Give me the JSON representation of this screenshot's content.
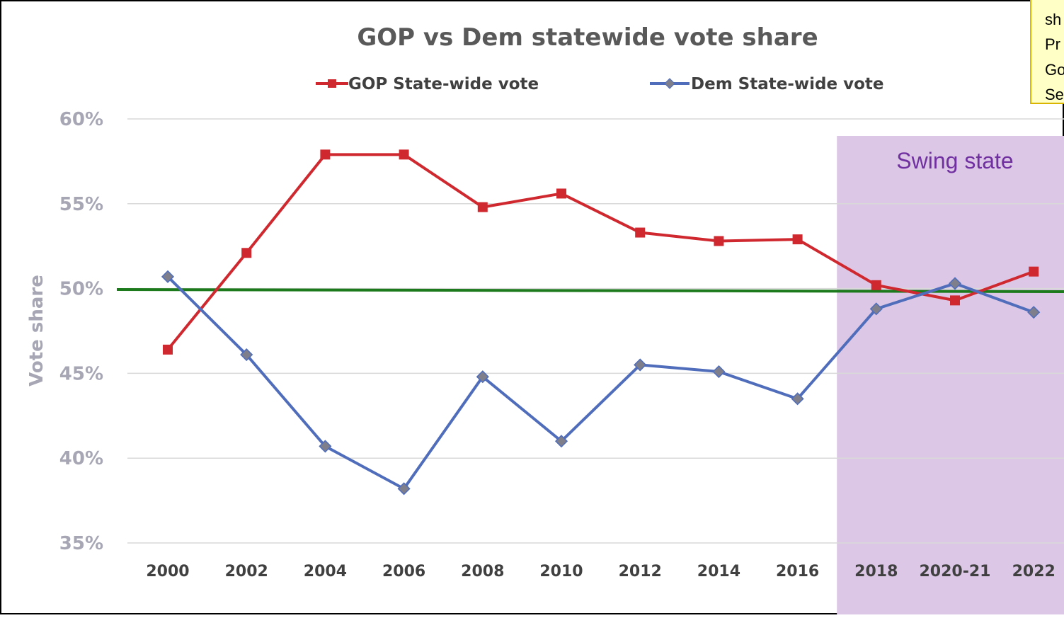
{
  "chart_data": {
    "type": "line",
    "title": "GOP vs Dem statewide vote share",
    "xlabel": "",
    "ylabel": "Vote share",
    "categories": [
      "2000",
      "2002",
      "2004",
      "2006",
      "2008",
      "2010",
      "2012",
      "2014",
      "2016",
      "2018",
      "2020-21",
      "2022"
    ],
    "y_ticks": [
      "35%",
      "40%",
      "45%",
      "50%",
      "55%",
      "60%"
    ],
    "ylim": [
      35,
      60
    ],
    "grid": true,
    "legend_position": "top",
    "series": [
      {
        "name": "GOP State-wide vote",
        "color": "#d0282f",
        "marker": "square",
        "values": [
          46.4,
          52.1,
          57.9,
          57.9,
          54.8,
          55.6,
          53.3,
          52.8,
          52.9,
          50.2,
          49.3,
          51.0
        ]
      },
      {
        "name": "Dem State-wide vote",
        "color": "#4f6dbb",
        "marker": "diamond",
        "values": [
          50.7,
          46.1,
          40.7,
          38.2,
          44.8,
          41.0,
          45.5,
          45.1,
          43.5,
          48.8,
          50.3,
          48.6
        ]
      }
    ],
    "reference_line": {
      "value": 49.9,
      "color": "#1c7a1c"
    },
    "shaded_region": {
      "label": "Swing state",
      "from_category": "2018",
      "color": "#dcc8e6"
    },
    "note": {
      "lines": [
        "sh",
        "Pr",
        "Go",
        "Se"
      ],
      "background": "#ffffc6",
      "border": "#d9b400"
    }
  }
}
